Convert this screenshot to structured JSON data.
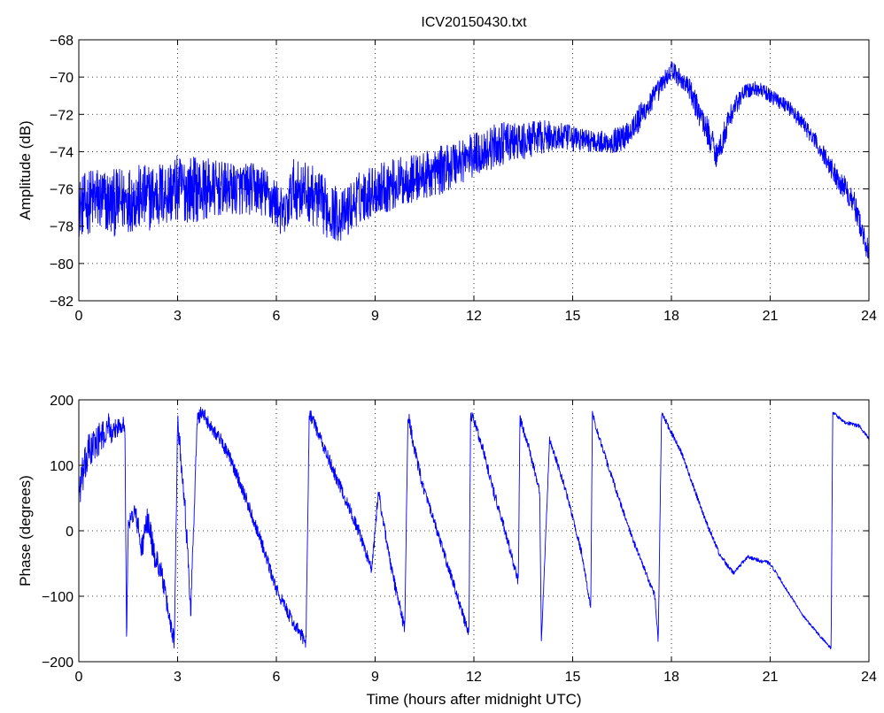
{
  "chart_data": [
    {
      "type": "line",
      "title": "ICV20150430.txt",
      "xlabel": "",
      "ylabel": "Amplitude (dB)",
      "xlim": [
        0,
        24
      ],
      "ylim": [
        -82,
        -68
      ],
      "xticks": [
        "0",
        "3",
        "6",
        "9",
        "12",
        "15",
        "18",
        "21",
        "24"
      ],
      "yticks": [
        "-68",
        "-70",
        "-72",
        "-74",
        "-76",
        "-78",
        "-80",
        "-82"
      ],
      "grid": true,
      "color": "#0000ff",
      "series": [
        {
          "x": [
            0,
            0.5,
            1,
            1.5,
            2,
            2.5,
            3,
            3.5,
            4,
            4.5,
            5,
            5.5,
            6,
            6.25,
            6.5,
            7,
            7.5,
            8,
            8.5,
            9,
            9.5,
            10,
            10.5,
            11,
            11.5,
            12,
            12.5,
            13,
            13.5,
            14,
            14.5,
            15,
            15.5,
            16,
            16.5,
            17,
            17.5,
            18,
            18.5,
            19,
            19.4,
            19.8,
            20.2,
            20.6,
            21,
            21.5,
            22,
            22.5,
            23,
            23.5,
            24
          ],
          "y": [
            -77,
            -76.5,
            -76.8,
            -76.5,
            -76.5,
            -76.3,
            -76,
            -76,
            -76,
            -76,
            -76,
            -76,
            -76.8,
            -77.5,
            -76,
            -76.2,
            -77,
            -77.5,
            -76.5,
            -76,
            -75.8,
            -75.5,
            -75.3,
            -75,
            -74.5,
            -74.2,
            -73.8,
            -73.5,
            -73.5,
            -73.2,
            -73.2,
            -73.3,
            -73.4,
            -73.5,
            -73.3,
            -72.3,
            -71,
            -69.6,
            -70.5,
            -72.5,
            -74.2,
            -72,
            -70.8,
            -70.6,
            -71,
            -71.5,
            -72.5,
            -73.8,
            -75.3,
            -76.5,
            -79.5
          ],
          "noise": [
            1.6,
            1.8,
            1.8,
            1.8,
            1.8,
            1.8,
            1.8,
            1.8,
            1.6,
            1.4,
            1.4,
            1.4,
            1.4,
            1.2,
            1.6,
            1.6,
            1.6,
            1.4,
            1.4,
            1.4,
            1.4,
            1.3,
            1.3,
            1.3,
            1.3,
            1.2,
            1.2,
            1.1,
            1.0,
            0.9,
            0.8,
            0.7,
            0.6,
            0.6,
            0.7,
            0.8,
            0.6,
            0.5,
            0.6,
            0.8,
            0.8,
            0.6,
            0.4,
            0.4,
            0.4,
            0.4,
            0.4,
            0.5,
            0.6,
            0.7,
            0.6
          ]
        }
      ]
    },
    {
      "type": "line",
      "title": "",
      "xlabel": "Time (hours after midnight UTC)",
      "ylabel": "Phase (degrees)",
      "xlim": [
        0,
        24
      ],
      "ylim": [
        -200,
        200
      ],
      "xticks": [
        "0",
        "3",
        "6",
        "9",
        "12",
        "15",
        "18",
        "21",
        "24"
      ],
      "yticks": [
        "200",
        "100",
        "0",
        "-100",
        "-200"
      ],
      "grid": true,
      "color": "#0000ff",
      "series": [
        {
          "x": [
            0,
            0.3,
            0.6,
            0.85,
            0.9,
            1.0,
            1.1,
            1.3,
            1.4,
            1.45,
            1.5,
            1.7,
            1.8,
            1.9,
            2.1,
            2.3,
            2.5,
            2.7,
            2.9,
            3.0,
            3.05,
            3.2,
            3.4,
            3.6,
            3.7,
            3.75,
            4.0,
            4.3,
            4.6,
            5.0,
            5.5,
            6.0,
            6.5,
            6.9,
            7.0,
            7.1,
            7.5,
            8.0,
            8.5,
            8.9,
            9.1,
            9.3,
            9.5,
            9.9,
            10.0,
            10.1,
            10.3,
            10.5,
            11.0,
            11.5,
            11.85,
            11.9,
            12.0,
            12.3,
            12.6,
            13.0,
            13.35,
            13.4,
            13.6,
            13.8,
            14.0,
            14.05,
            14.3,
            14.8,
            15.3,
            15.55,
            15.6,
            15.7,
            16.2,
            16.8,
            17.5,
            17.6,
            17.7,
            18.3,
            19.0,
            19.5,
            19.9,
            20.3,
            21.0,
            21.5,
            22.0,
            22.5,
            22.85,
            22.9,
            23.3,
            23.7,
            24.0
          ],
          "y": [
            60,
            120,
            140,
            150,
            170,
            140,
            155,
            165,
            160,
            -170,
            10,
            30,
            5,
            -30,
            20,
            -40,
            -60,
            -120,
            -170,
            170,
            140,
            60,
            -120,
            170,
            180,
            180,
            160,
            140,
            110,
            60,
            -10,
            -90,
            -140,
            -170,
            180,
            170,
            120,
            60,
            0,
            -60,
            60,
            0,
            -60,
            -150,
            180,
            150,
            100,
            60,
            -20,
            -100,
            -160,
            175,
            170,
            120,
            60,
            -10,
            -80,
            170,
            140,
            100,
            60,
            -170,
            140,
            60,
            -40,
            -120,
            180,
            160,
            80,
            -10,
            -100,
            -170,
            180,
            120,
            20,
            -40,
            -65,
            -40,
            -50,
            -90,
            -130,
            -160,
            -180,
            180,
            165,
            160,
            140
          ],
          "noise": [
            30,
            30,
            25,
            20,
            15,
            15,
            15,
            15,
            10,
            10,
            10,
            15,
            20,
            20,
            20,
            20,
            15,
            15,
            15,
            15,
            20,
            20,
            20,
            12,
            12,
            12,
            10,
            10,
            10,
            10,
            10,
            10,
            10,
            10,
            10,
            10,
            10,
            10,
            10,
            10,
            10,
            10,
            10,
            10,
            10,
            10,
            10,
            8,
            8,
            8,
            8,
            8,
            8,
            8,
            8,
            8,
            8,
            8,
            8,
            6,
            6,
            6,
            6,
            6,
            6,
            5,
            5,
            5,
            5,
            5,
            5,
            5,
            5,
            4,
            4,
            4,
            3,
            3,
            3,
            2,
            2,
            2,
            2,
            3,
            3,
            3,
            3
          ]
        }
      ]
    }
  ]
}
